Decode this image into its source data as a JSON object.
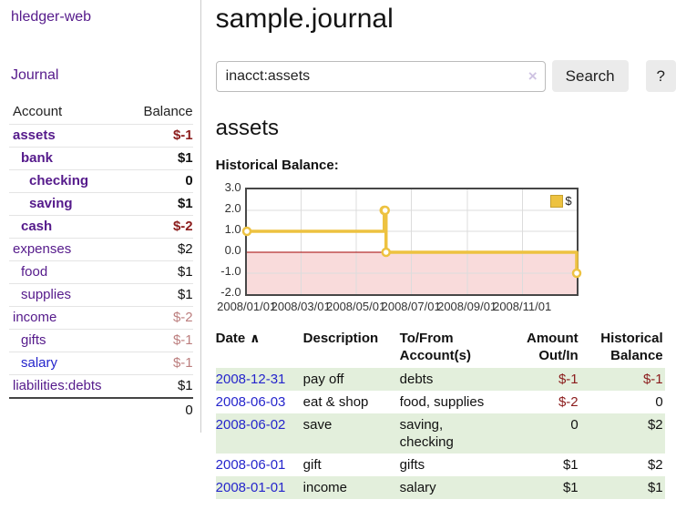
{
  "app": {
    "brand": "hledger-web"
  },
  "sidebar": {
    "nav": {
      "journal_label": "Journal"
    },
    "header": {
      "account": "Account",
      "balance": "Balance"
    },
    "accounts": [
      {
        "name": "assets",
        "indent": 1,
        "balance": "$-1",
        "emph": true,
        "balance_tone": "neg-strong",
        "link_tone": "purple"
      },
      {
        "name": "bank",
        "indent": 2,
        "balance": "$1",
        "emph": true,
        "balance_tone": "plain",
        "link_tone": "purple"
      },
      {
        "name": "checking",
        "indent": 3,
        "balance": "0",
        "emph": true,
        "balance_tone": "plain",
        "link_tone": "purple"
      },
      {
        "name": "saving",
        "indent": 3,
        "balance": "$1",
        "emph": true,
        "balance_tone": "plain",
        "link_tone": "purple"
      },
      {
        "name": "cash",
        "indent": 2,
        "balance": "$-2",
        "emph": true,
        "balance_tone": "neg-strong",
        "link_tone": "purple"
      },
      {
        "name": "expenses",
        "indent": 1,
        "balance": "$2",
        "emph": false,
        "balance_tone": "plain",
        "link_tone": "purple"
      },
      {
        "name": "food",
        "indent": 2,
        "balance": "$1",
        "emph": false,
        "balance_tone": "plain",
        "link_tone": "purple"
      },
      {
        "name": "supplies",
        "indent": 2,
        "balance": "$1",
        "emph": false,
        "balance_tone": "plain",
        "link_tone": "purple"
      },
      {
        "name": "income",
        "indent": 1,
        "balance": "$-2",
        "emph": false,
        "balance_tone": "neg-soft",
        "link_tone": "purple"
      },
      {
        "name": "gifts",
        "indent": 2,
        "balance": "$-1",
        "emph": false,
        "balance_tone": "neg-soft",
        "link_tone": "purple"
      },
      {
        "name": "salary",
        "indent": 2,
        "balance": "$-1",
        "emph": false,
        "balance_tone": "neg-soft",
        "link_tone": "blue"
      },
      {
        "name": "liabilities:debts",
        "indent": 1,
        "balance": "$1",
        "emph": false,
        "balance_tone": "plain",
        "link_tone": "purple"
      }
    ],
    "total": "0"
  },
  "main": {
    "title": "sample.journal",
    "search": {
      "value": "inacct:assets",
      "clear_icon": "×",
      "search_button": "Search",
      "help_button": "?"
    },
    "account_heading": "assets",
    "chart_title": "Historical Balance:"
  },
  "chart_data": {
    "type": "line",
    "style": "step",
    "title": "Historical Balance",
    "series": [
      {
        "name": "$",
        "color": "#edc240",
        "points": [
          [
            "2008-01-01",
            1
          ],
          [
            "2008-06-01",
            2
          ],
          [
            "2008-06-02",
            2
          ],
          [
            "2008-06-03",
            0
          ],
          [
            "2008-12-31",
            -1
          ]
        ]
      }
    ],
    "x_range": [
      "2008-01-01",
      "2008-12-31"
    ],
    "xticks": [
      "2008/01/01",
      "2008/03/01",
      "2008/05/01",
      "2008/07/01",
      "2008/09/01",
      "2008/11/01"
    ],
    "yticks": [
      "3.0",
      "2.0",
      "1.0",
      "0.0",
      "-1.0",
      "-2.0"
    ],
    "ylim": [
      -2,
      3
    ],
    "grid": true,
    "grid_color": "#dcdcdc",
    "negative_region_color": "#f9dbdb",
    "zero_line_color": "#a40000",
    "legend": {
      "position": "top-right",
      "label": "$"
    }
  },
  "register": {
    "headers": {
      "date": "Date",
      "sort_icon": "∧",
      "description": "Description",
      "accounts": "To/From Account(s)",
      "amount": "Amount Out/In",
      "balance": "Historical Balance"
    },
    "rows": [
      {
        "date": "2008-12-31",
        "description": "pay off",
        "accounts": "debts",
        "amount": "$-1",
        "amount_tone": "neg",
        "balance": "$-1",
        "balance_tone": "neg"
      },
      {
        "date": "2008-06-03",
        "description": "eat & shop",
        "accounts": "food, supplies",
        "amount": "$-2",
        "amount_tone": "neg",
        "balance": "0",
        "balance_tone": "plain"
      },
      {
        "date": "2008-06-02",
        "description": "save",
        "accounts": "saving, checking",
        "amount": "0",
        "amount_tone": "plain",
        "balance": "$2",
        "balance_tone": "plain"
      },
      {
        "date": "2008-06-01",
        "description": "gift",
        "accounts": "gifts",
        "amount": "$1",
        "amount_tone": "plain",
        "balance": "$2",
        "balance_tone": "plain"
      },
      {
        "date": "2008-01-01",
        "description": "income",
        "accounts": "salary",
        "amount": "$1",
        "amount_tone": "plain",
        "balance": "$1",
        "balance_tone": "plain"
      }
    ]
  },
  "colors": {
    "link_purple": "#551a8b",
    "link_blue": "#2525cc",
    "negative_strong": "#8b1c1c",
    "negative_soft": "#bc7e7e",
    "row_stripe_green": "#e3efdc",
    "series_yellow": "#edc240"
  }
}
